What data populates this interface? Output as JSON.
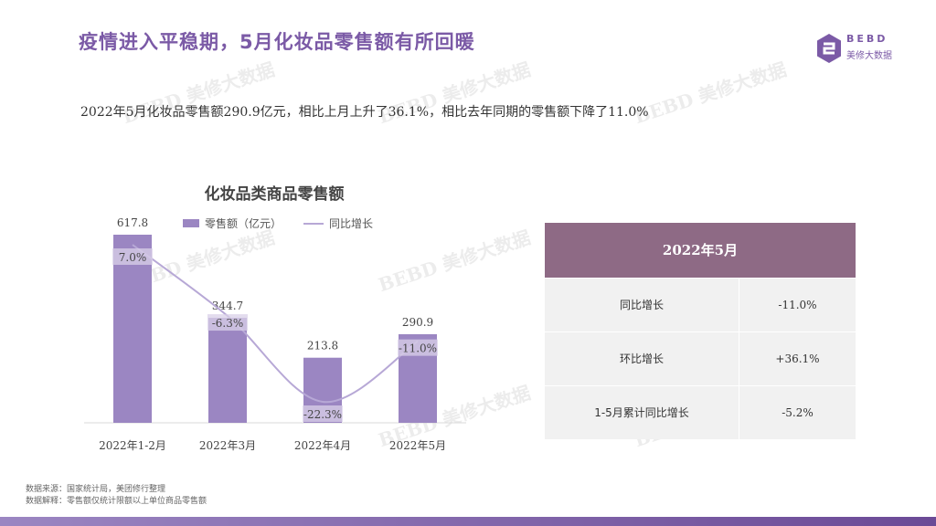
{
  "header": {
    "title": "疫情进入平稳期，5月化妆品零售额有所回暖",
    "logo_top": "BEBD",
    "logo_bottom": "美修大数据"
  },
  "subtitle": "2022年5月化妆品零售额290.9亿元，相比上月上升了36.1%，相比去年同期的零售额下降了11.0%",
  "chart_data": {
    "type": "bar",
    "title": "化妆品类商品零售额",
    "categories": [
      "2022年1-2月",
      "2022年3月",
      "2022年4月",
      "2022年5月"
    ],
    "series": [
      {
        "name": "零售额（亿元）",
        "kind": "bar",
        "values": [
          617.8,
          344.7,
          213.8,
          290.9
        ],
        "labels": [
          "617.8",
          "344.7",
          "213.8",
          "290.9"
        ]
      },
      {
        "name": "同比增长",
        "kind": "line",
        "values": [
          7.0,
          -6.3,
          -22.3,
          -11.0
        ],
        "labels": [
          "7.0%",
          "-6.3%",
          "-22.3%",
          "-11.0%"
        ]
      }
    ],
    "colors": {
      "bar": "#9b86c2",
      "line": "#b7a8d6"
    },
    "legend": "top",
    "grid": false
  },
  "table": {
    "header": "2022年5月",
    "rows": [
      {
        "label": "同比增长",
        "value": "-11.0%"
      },
      {
        "label": "环比增长",
        "value": "+36.1%"
      },
      {
        "label": "1-5月累计同比增长",
        "value": "-5.2%"
      }
    ]
  },
  "footnotes": {
    "source": "数据来源：国家统计局，美团修行整理",
    "note": "数据解释：零售额仅统计限额以上单位商品零售额"
  },
  "watermark": "BEBD 美修大数据"
}
